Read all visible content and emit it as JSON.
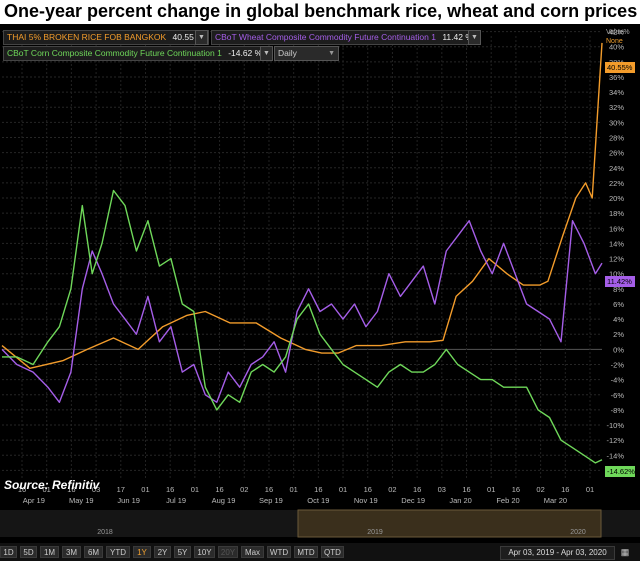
{
  "title": "One-year percent change in global benchmark rice, wheat and corn prices",
  "source": "Source: Refinitiv",
  "value_header": {
    "label": "Value%",
    "none": "None"
  },
  "legend": {
    "rice": {
      "label": "THAI 5% BROKEN RICE FOB BANGKOK",
      "value": "40.55 %",
      "color": "#f39c2b"
    },
    "wheat": {
      "label": "CBoT Wheat Composite Commodity Future Continuation 1",
      "value": "11.42 %",
      "color": "#a55ee8"
    },
    "corn": {
      "label": "CBoT Corn Composite Commodity Future Continuation 1",
      "value": "-14.62 %",
      "color": "#6fd85a"
    },
    "frequency": "Daily"
  },
  "badges": {
    "rice": "40.55%",
    "wheat": "11.42%",
    "corn": "-14.62%"
  },
  "year_labels": [
    "2018",
    "2019",
    "2020"
  ],
  "toolbar": {
    "ranges": [
      "1D",
      "5D",
      "1M",
      "3M",
      "6M",
      "YTD",
      "1Y",
      "2Y",
      "5Y",
      "10Y",
      "20Y",
      "Max",
      "WTD",
      "MTD",
      "QTD"
    ],
    "active": "1Y",
    "disabled": [
      "20Y"
    ],
    "date_range": "Apr 03, 2019 - Apr 03, 2020",
    "calendar_icon": "calendar-icon"
  },
  "chart_data": {
    "type": "line",
    "x_axis": {
      "tick_labels": [
        "16",
        "01",
        "16",
        "03",
        "17",
        "01",
        "16",
        "01",
        "16",
        "02",
        "16",
        "01",
        "16",
        "01",
        "16",
        "02",
        "16",
        "03",
        "16",
        "01",
        "16",
        "02",
        "16",
        "01"
      ],
      "month_labels": [
        "Apr 19",
        "May 19",
        "Jun 19",
        "Jul 19",
        "Aug 19",
        "Sep 19",
        "Oct 19",
        "Nov 19",
        "Dec 19",
        "Jan 20",
        "Feb 20",
        "Mar 20"
      ],
      "range": [
        "2019-04-03",
        "2020-04-03"
      ]
    },
    "y_axis": {
      "ylim": [
        -17,
        43
      ],
      "tick_labels": [
        "42%",
        "40%",
        "38%",
        "36%",
        "34%",
        "32%",
        "30%",
        "28%",
        "26%",
        "24%",
        "22%",
        "20%",
        "18%",
        "16%",
        "14%",
        "12%",
        "10%",
        "8%",
        "6%",
        "4%",
        "2%",
        "0%",
        "-2%",
        "-4%",
        "-6%",
        "-8%",
        "-10%",
        "-12%",
        "-14%",
        "-16%"
      ],
      "ticks": [
        42,
        40,
        38,
        36,
        34,
        32,
        30,
        28,
        26,
        24,
        22,
        20,
        18,
        16,
        14,
        12,
        10,
        8,
        6,
        4,
        2,
        0,
        -2,
        -4,
        -6,
        -8,
        -10,
        -12,
        -14,
        -16
      ],
      "position": "right"
    },
    "grid": true,
    "series": [
      {
        "name": "THAI 5% BROKEN RICE FOB BANGKOK",
        "x": [
          "2019-04-03",
          "2019-04-20",
          "2019-05-10",
          "2019-05-25",
          "2019-06-10",
          "2019-06-25",
          "2019-07-10",
          "2019-07-25",
          "2019-08-05",
          "2019-08-20",
          "2019-09-05",
          "2019-09-20",
          "2019-10-05",
          "2019-10-15",
          "2019-10-25",
          "2019-11-05",
          "2019-11-20",
          "2019-12-05",
          "2019-12-20",
          "2019-12-28",
          "2020-01-05",
          "2020-01-15",
          "2020-01-25",
          "2020-02-05",
          "2020-02-15",
          "2020-02-25",
          "2020-03-01",
          "2020-03-10",
          "2020-03-18",
          "2020-03-24",
          "2020-03-28",
          "2020-04-03"
        ],
        "y": [
          0.5,
          -2.5,
          -1.5,
          0,
          1.5,
          0,
          3,
          4.5,
          5,
          3.5,
          3.5,
          1.5,
          0,
          -0.5,
          -0.5,
          0.5,
          0.5,
          1,
          1,
          1.2,
          7,
          9,
          12,
          10,
          8.5,
          8.5,
          9,
          15,
          20,
          22,
          20,
          40.5
        ]
      },
      {
        "name": "CBoT Wheat Composite Commodity Future Continuation 1",
        "x": [
          "2019-04-03",
          "2019-04-12",
          "2019-04-22",
          "2019-05-01",
          "2019-05-08",
          "2019-05-15",
          "2019-05-22",
          "2019-05-28",
          "2019-06-03",
          "2019-06-10",
          "2019-06-17",
          "2019-06-24",
          "2019-07-01",
          "2019-07-08",
          "2019-07-15",
          "2019-07-22",
          "2019-07-29",
          "2019-08-05",
          "2019-08-12",
          "2019-08-19",
          "2019-08-26",
          "2019-09-02",
          "2019-09-09",
          "2019-09-16",
          "2019-09-23",
          "2019-09-30",
          "2019-10-07",
          "2019-10-14",
          "2019-10-21",
          "2019-10-28",
          "2019-11-04",
          "2019-11-11",
          "2019-11-18",
          "2019-11-25",
          "2019-12-02",
          "2019-12-09",
          "2019-12-16",
          "2019-12-23",
          "2019-12-30",
          "2020-01-06",
          "2020-01-13",
          "2020-01-20",
          "2020-01-27",
          "2020-02-03",
          "2020-02-10",
          "2020-02-17",
          "2020-02-24",
          "2020-03-02",
          "2020-03-09",
          "2020-03-16",
          "2020-03-23",
          "2020-03-30",
          "2020-04-03"
        ],
        "y": [
          0,
          -2,
          -3,
          -5,
          -7,
          -3,
          8,
          13,
          10,
          6,
          4,
          2,
          7,
          1,
          3,
          -3,
          -2,
          -6,
          -7,
          -3,
          -5,
          -2,
          -1,
          1,
          -3,
          5,
          8,
          5,
          6,
          4,
          6,
          3,
          5,
          10,
          7,
          9,
          11,
          6,
          13,
          15,
          17,
          13,
          10,
          14,
          10,
          6,
          5,
          4,
          1,
          17,
          14,
          10,
          11.4
        ]
      },
      {
        "name": "CBoT Corn Composite Commodity Future Continuation 1",
        "x": [
          "2019-04-03",
          "2019-04-12",
          "2019-04-22",
          "2019-05-01",
          "2019-05-08",
          "2019-05-15",
          "2019-05-22",
          "2019-05-28",
          "2019-06-03",
          "2019-06-10",
          "2019-06-17",
          "2019-06-24",
          "2019-07-01",
          "2019-07-08",
          "2019-07-15",
          "2019-07-22",
          "2019-07-29",
          "2019-08-05",
          "2019-08-12",
          "2019-08-19",
          "2019-08-26",
          "2019-09-02",
          "2019-09-09",
          "2019-09-16",
          "2019-09-23",
          "2019-09-30",
          "2019-10-07",
          "2019-10-14",
          "2019-10-21",
          "2019-10-28",
          "2019-11-04",
          "2019-11-11",
          "2019-11-18",
          "2019-11-25",
          "2019-12-02",
          "2019-12-09",
          "2019-12-16",
          "2019-12-23",
          "2019-12-30",
          "2020-01-06",
          "2020-01-13",
          "2020-01-20",
          "2020-01-27",
          "2020-02-03",
          "2020-02-10",
          "2020-02-17",
          "2020-02-24",
          "2020-03-02",
          "2020-03-09",
          "2020-03-16",
          "2020-03-23",
          "2020-03-30",
          "2020-04-03"
        ],
        "y": [
          -1,
          -1,
          -2,
          1,
          3,
          8,
          19,
          10,
          14,
          21,
          19,
          13,
          17,
          11,
          12,
          6,
          5,
          -5,
          -8,
          -6,
          -7,
          -3,
          -2,
          -3,
          -1,
          4,
          6,
          2,
          0,
          -2,
          -3,
          -4,
          -5,
          -3,
          -2,
          -3,
          -3,
          -2,
          0,
          -2,
          -3,
          -4,
          -4,
          -5,
          -5,
          -5,
          -8,
          -9,
          -12,
          -13,
          -14,
          -15,
          -14.6
        ]
      }
    ]
  }
}
